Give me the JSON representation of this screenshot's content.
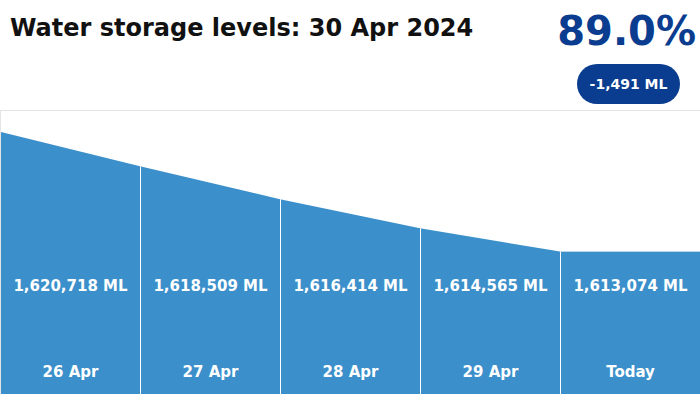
{
  "chart_data": {
    "type": "area",
    "title": "Water storage levels: 30 Apr 2024",
    "annotations": [
      "89.0%",
      "-1,491 ML"
    ],
    "categories": [
      "26 Apr",
      "27 Apr",
      "28 Apr",
      "29 Apr",
      "Today"
    ],
    "values": [
      1620718,
      1618509,
      1616414,
      1614565,
      1613074
    ],
    "value_labels": [
      "1,620,718 ML",
      "1,618,509 ML",
      "1,616,414 ML",
      "1,614,565 ML",
      "1,613,074 ML"
    ],
    "color": "#3b8fca",
    "ylim": [
      1604000,
      1622100
    ],
    "data_labels": true,
    "tick_labels": "x"
  }
}
